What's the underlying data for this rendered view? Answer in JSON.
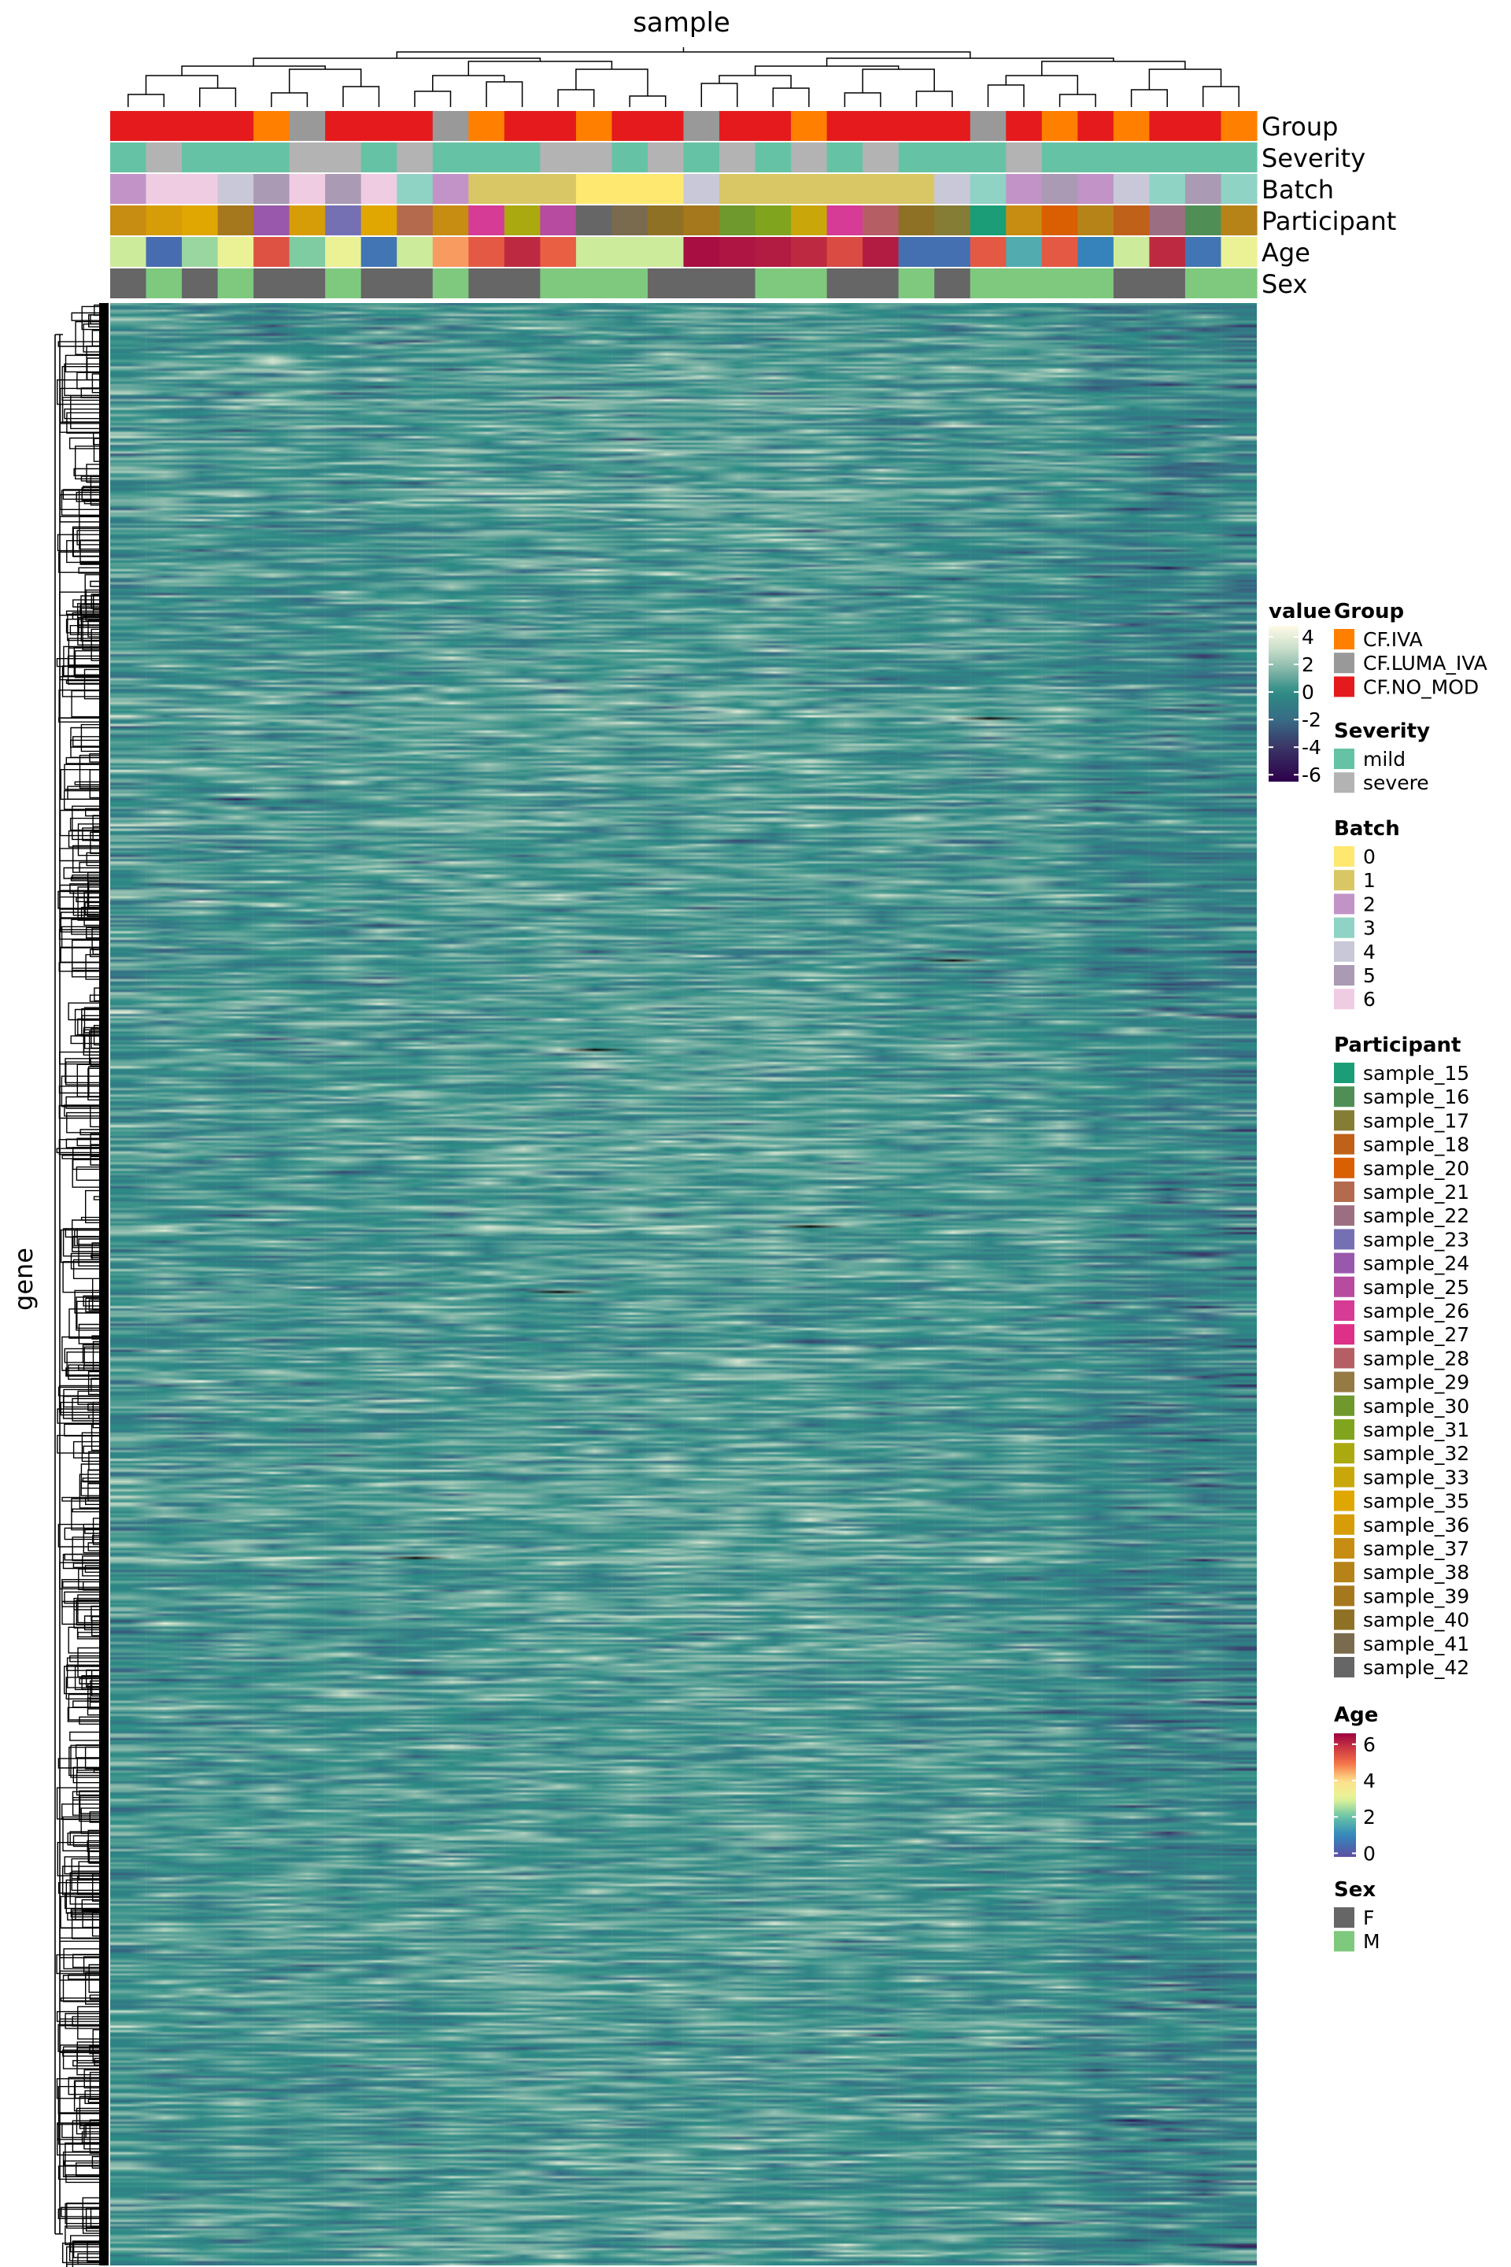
{
  "chart_data": {
    "type": "heatmap",
    "title": "sample",
    "xlabel": "sample",
    "ylabel": "gene",
    "n_samples": 32,
    "n_genes": 900,
    "value_range": [
      -6,
      4.5
    ],
    "sample_annotations": {
      "Group": [
        "CF.NO_MOD",
        "CF.NO_MOD",
        "CF.NO_MOD",
        "CF.NO_MOD",
        "CF.IVA",
        "CF.LUMA_IVA",
        "CF.NO_MOD",
        "CF.NO_MOD",
        "CF.NO_MOD",
        "CF.LUMA_IVA",
        "CF.IVA",
        "CF.NO_MOD",
        "CF.NO_MOD",
        "CF.IVA",
        "CF.NO_MOD",
        "CF.NO_MOD",
        "CF.LUMA_IVA",
        "CF.NO_MOD",
        "CF.NO_MOD",
        "CF.IVA",
        "CF.NO_MOD",
        "CF.NO_MOD",
        "CF.NO_MOD",
        "CF.NO_MOD",
        "CF.LUMA_IVA",
        "CF.NO_MOD",
        "CF.IVA",
        "CF.NO_MOD",
        "CF.IVA",
        "CF.NO_MOD",
        "CF.NO_MOD",
        "CF.IVA"
      ],
      "Severity": [
        "mild",
        "severe",
        "mild",
        "mild",
        "mild",
        "severe",
        "severe",
        "mild",
        "severe",
        "mild",
        "mild",
        "mild",
        "severe",
        "severe",
        "mild",
        "severe",
        "mild",
        "severe",
        "mild",
        "severe",
        "mild",
        "severe",
        "mild",
        "mild",
        "mild",
        "severe",
        "mild",
        "mild",
        "mild",
        "mild",
        "mild",
        "mild"
      ],
      "Batch": [
        "2",
        "6",
        "6",
        "4",
        "5",
        "6",
        "5",
        "6",
        "3",
        "2",
        "1",
        "1",
        "1",
        "0",
        "0",
        "0",
        "4",
        "1",
        "1",
        "1",
        "1",
        "1",
        "1",
        "4",
        "3",
        "2",
        "5",
        "2",
        "4",
        "3",
        "5",
        "3"
      ],
      "Participant": [
        "sample_37",
        "sample_36",
        "sample_35",
        "sample_39",
        "sample_24",
        "sample_36",
        "sample_23",
        "sample_35",
        "sample_21",
        "sample_37",
        "sample_26",
        "sample_32",
        "sample_25",
        "sample_42",
        "sample_41",
        "sample_40",
        "sample_39",
        "sample_30",
        "sample_31",
        "sample_33",
        "sample_26",
        "sample_28",
        "sample_40",
        "sample_17",
        "sample_15",
        "sample_37",
        "sample_20",
        "sample_38",
        "sample_18",
        "sample_22",
        "sample_16",
        "sample_38"
      ],
      "Age": [
        2.8,
        0.4,
        2.4,
        3.2,
        5.4,
        2.2,
        3.2,
        0.6,
        2.8,
        4.6,
        5.3,
        6.0,
        5.2,
        2.8,
        2.8,
        2.8,
        6.4,
        6.3,
        6.2,
        6.0,
        5.5,
        6.2,
        0.5,
        0.5,
        5.3,
        1.6,
        5.3,
        0.9,
        2.8,
        6.0,
        0.6,
        3.2
      ],
      "Sex": [
        "F",
        "M",
        "F",
        "M",
        "F",
        "F",
        "M",
        "F",
        "F",
        "M",
        "F",
        "F",
        "M",
        "M",
        "M",
        "F",
        "F",
        "F",
        "M",
        "M",
        "F",
        "F",
        "M",
        "F",
        "M",
        "M",
        "M",
        "M",
        "F",
        "F",
        "M",
        "M"
      ]
    },
    "annotation_tracks": [
      "Group",
      "Severity",
      "Batch",
      "Participant",
      "Age",
      "Sex"
    ],
    "legends": {
      "value": {
        "title": "value",
        "ticks": [
          "4",
          "2",
          "0",
          "-2",
          "-4",
          "-6"
        ],
        "tick_values": [
          4,
          2,
          0,
          -2,
          -4,
          -6
        ],
        "range": [
          -6.5,
          4.8
        ]
      },
      "Group": {
        "title": "Group",
        "labels": [
          "CF.IVA",
          "CF.LUMA_IVA",
          "CF.NO_MOD"
        ],
        "colors": [
          "#ff7f00",
          "#999999",
          "#e41a1c"
        ]
      },
      "Severity": {
        "title": "Severity",
        "labels": [
          "mild",
          "severe"
        ],
        "colors": [
          "#66c2a5",
          "#b3b3b3"
        ]
      },
      "Batch": {
        "title": "Batch",
        "labels": [
          "0",
          "1",
          "2",
          "3",
          "4",
          "5",
          "6"
        ],
        "colors": [
          "#ffe86f",
          "#d9c766",
          "#c293c7",
          "#8fd3c4",
          "#c8c8d8",
          "#aa9ab3",
          "#f0cce3"
        ]
      },
      "Participant": {
        "title": "Participant",
        "labels": [
          "sample_15",
          "sample_16",
          "sample_17",
          "sample_18",
          "sample_20",
          "sample_21",
          "sample_22",
          "sample_23",
          "sample_24",
          "sample_25",
          "sample_26",
          "sample_27",
          "sample_28",
          "sample_29",
          "sample_30",
          "sample_31",
          "sample_32",
          "sample_33",
          "sample_35",
          "sample_36",
          "sample_37",
          "sample_38",
          "sample_39",
          "sample_40",
          "sample_41",
          "sample_42"
        ],
        "colors": [
          "#1b9e77",
          "#4f8f56",
          "#857d36",
          "#c0611a",
          "#d95f02",
          "#b46b4d",
          "#9c6e81",
          "#7570b3",
          "#9958ab",
          "#b64ba0",
          "#d63c95",
          "#de2f89",
          "#b55f64",
          "#957a44",
          "#6f982d",
          "#81a41f",
          "#aaa910",
          "#c9a70a",
          "#e0a703",
          "#d69d08",
          "#c68d12",
          "#b68319",
          "#a6781d",
          "#8f7126",
          "#7a6b4e",
          "#666666"
        ]
      },
      "Age": {
        "title": "Age",
        "ticks": [
          "6",
          "4",
          "2",
          "0"
        ],
        "tick_values": [
          6,
          4,
          2,
          0
        ],
        "range": [
          -0.2,
          6.6
        ]
      },
      "Sex": {
        "title": "Sex",
        "labels": [
          "F",
          "M"
        ],
        "colors": [
          "#666666",
          "#7fc97f"
        ]
      }
    }
  }
}
